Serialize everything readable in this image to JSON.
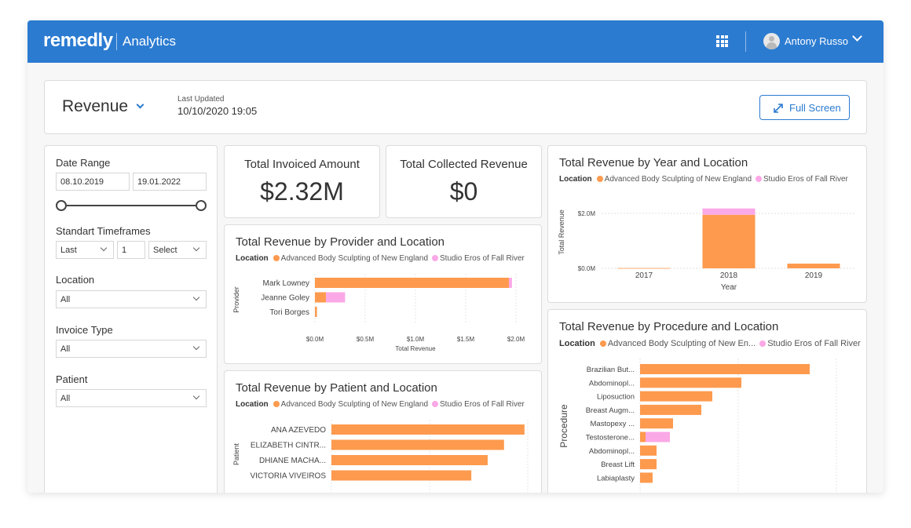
{
  "header": {
    "brand": "remedly",
    "brand_sub": "Analytics",
    "grid_icon": "apps-grid-icon",
    "user_name": "Antony Russo"
  },
  "page": {
    "title": "Revenue",
    "last_updated_label": "Last Updated",
    "last_updated_value": "10/10/2020 19:05",
    "fullscreen_label": "Full Screen"
  },
  "filters": {
    "date_range_label": "Date Range",
    "date_start": "08.10.2019",
    "date_end": "19.01.2022",
    "timeframes_label": "Standart Timeframes",
    "timeframe_mode": "Last",
    "timeframe_count": "1",
    "timeframe_unit": "Select",
    "location_label": "Location",
    "location_value": "All",
    "invoice_type_label": "Invoice Type",
    "invoice_type_value": "All",
    "patient_label": "Patient",
    "patient_value": "All"
  },
  "kpis": {
    "invoiced_title": "Total Invoiced Amount",
    "invoiced_value": "$2.32M",
    "collected_title": "Total Collected Revenue",
    "collected_value": "$0"
  },
  "colors": {
    "accent": "#2b7bd1",
    "series_abs": "#fd9a4e",
    "series_ser": "#fba8e6"
  },
  "legend": {
    "label": "Location",
    "abs": "Advanced Body Sculpting of New England",
    "abs_short": "Advanced Body Sculpting of New En...",
    "ser": "Studio Eros of Fall River"
  },
  "chart_titles": {
    "provider": "Total Revenue by Provider and Location",
    "patient": "Total Revenue by Patient and Location",
    "year": "Total Revenue by Year and Location",
    "procedure": "Total Revenue by Procedure and Location"
  },
  "chart_data": [
    {
      "id": "provider",
      "type": "bar",
      "orientation": "horizontal",
      "title": "Total Revenue by Provider and Location",
      "xlabel": "Total Revenue",
      "ylabel": "Provider",
      "xlim": [
        0,
        2000000
      ],
      "xticks": [
        "$0.0M",
        "$0.5M",
        "$1.0M",
        "$1.5M",
        "$2.0M"
      ],
      "categories": [
        "Mark Lowney",
        "Jeanne Goley",
        "Tori Borges"
      ],
      "series": [
        {
          "name": "Advanced Body Sculpting of New England",
          "values": [
            1930000,
            110000,
            20000
          ]
        },
        {
          "name": "Studio Eros of Fall River",
          "values": [
            30000,
            190000,
            0
          ]
        }
      ]
    },
    {
      "id": "patient",
      "type": "bar",
      "orientation": "horizontal",
      "title": "Total Revenue by Patient and Location",
      "ylabel": "Patient",
      "categories": [
        "ANA AZEVEDO",
        "ELIZABETH CINTR...",
        "DHIANE MACHA...",
        "VICTORIA VIVEIROS"
      ],
      "series": [
        {
          "name": "Advanced Body Sculpting of New England",
          "values": [
            236,
            211,
            191,
            171
          ]
        },
        {
          "name": "Studio Eros of Fall River",
          "values": [
            0,
            0,
            0,
            0
          ]
        }
      ],
      "xlim": [
        0,
        240
      ]
    },
    {
      "id": "year",
      "type": "bar",
      "orientation": "vertical",
      "title": "Total Revenue by Year and Location",
      "xlabel": "Year",
      "ylabel": "Total Revenue",
      "ylim": [
        0,
        2400000
      ],
      "yticks": [
        "$0.0M",
        "$2.0M"
      ],
      "categories": [
        "2017",
        "2018",
        "2019"
      ],
      "series": [
        {
          "name": "Advanced Body Sculpting of New England",
          "values": [
            10000,
            1950000,
            170000
          ]
        },
        {
          "name": "Studio Eros of Fall River",
          "values": [
            0,
            230000,
            0
          ]
        }
      ]
    },
    {
      "id": "procedure",
      "type": "bar",
      "orientation": "horizontal",
      "title": "Total Revenue by Procedure and Location",
      "ylabel": "Procedure",
      "categories": [
        "Brazilian But...",
        "Abdominopl...",
        "Liposuction",
        "Breast Augm...",
        "Mastopexy ...",
        "Testosterone...",
        "Abdominopl...",
        "Breast Lift",
        "Labiaplasty"
      ],
      "series": [
        {
          "name": "Advanced Body Sculpting of New England",
          "values": [
            216,
            129,
            92,
            78,
            42,
            7,
            21,
            21,
            16
          ]
        },
        {
          "name": "Studio Eros of Fall River",
          "values": [
            0,
            0,
            0,
            0,
            0,
            31,
            0,
            0,
            0
          ]
        }
      ],
      "xlim": [
        0,
        250
      ]
    }
  ]
}
